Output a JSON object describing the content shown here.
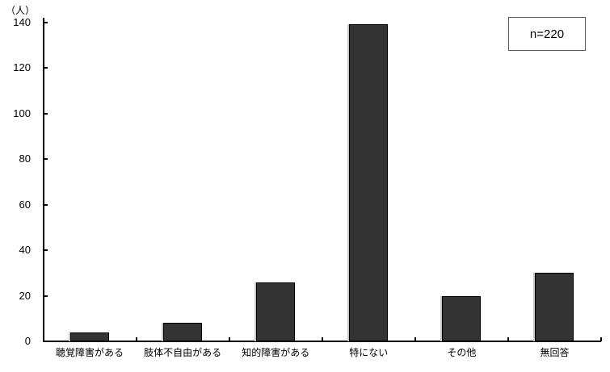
{
  "chart_data": {
    "type": "bar",
    "title": "",
    "ylabel": "（人）",
    "xlabel": "",
    "categories": [
      "聴覚障害がある",
      "肢体不自由がある",
      "知的障害がある",
      "特にない",
      "その他",
      "無回答"
    ],
    "values": [
      4,
      8,
      26,
      139,
      20,
      30
    ],
    "ylim": [
      0,
      140
    ],
    "yticks": [
      0,
      20,
      40,
      60,
      80,
      100,
      120,
      140
    ],
    "grid": false,
    "legend": false,
    "bar_color": "#333333",
    "bar_border_color": "#000000",
    "annotation": "n=220"
  }
}
